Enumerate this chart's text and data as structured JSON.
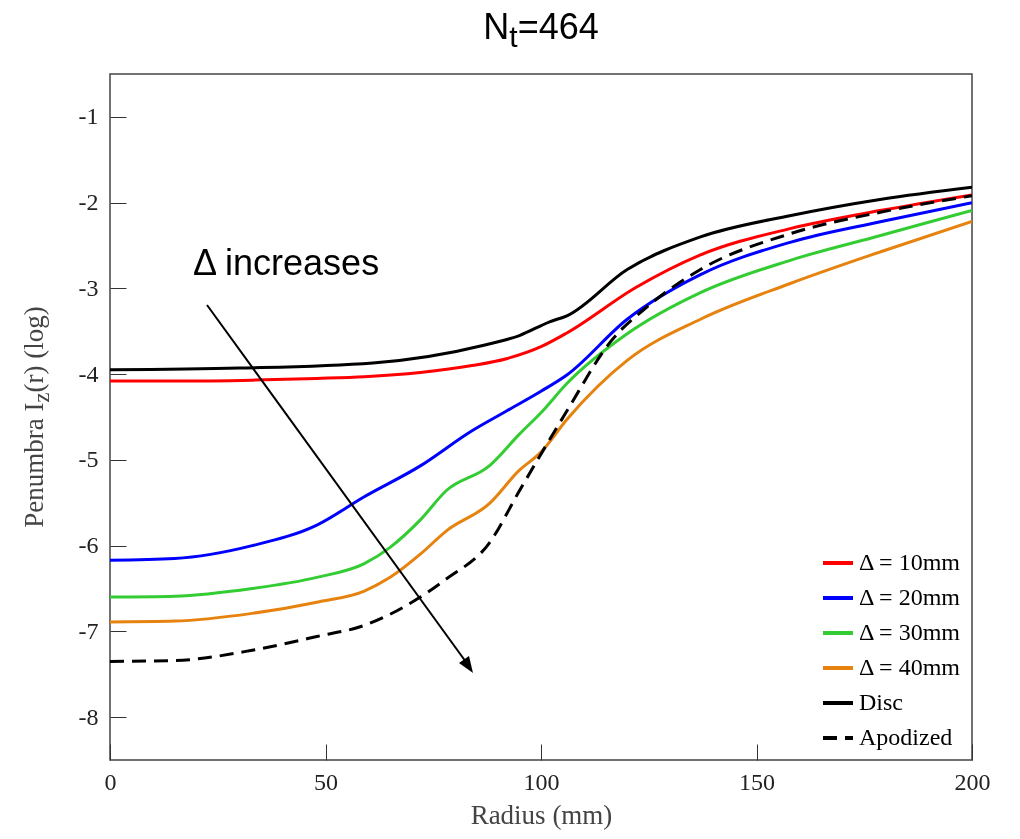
{
  "chart_data": {
    "type": "line",
    "title": "N$_{t}$=464",
    "xlabel": "Radius (mm)",
    "ylabel": "Penumbra I$_{z}$(r) (log)",
    "annotations": [
      "Δ increases"
    ],
    "xlim": [
      0,
      200
    ],
    "ylim": [
      -8.5,
      -0.5
    ],
    "xticks": [
      0,
      50,
      100,
      150,
      200
    ],
    "yticks": [
      -8,
      -7,
      -6,
      -5,
      -4,
      -3,
      -2,
      -1
    ],
    "grid": false,
    "legend": "bottom right",
    "series": [
      {
        "name": "Δ = 10mm",
        "color": "#ff0000",
        "line_style": "solid",
        "x": [
          0,
          15,
          33,
          48,
          59,
          72,
          84,
          92,
          100,
          106,
          122,
          137,
          158,
          179,
          200
        ],
        "values": [
          -4.08,
          -4.08,
          -4.07,
          -4.05,
          -4.03,
          -3.98,
          -3.9,
          -3.82,
          -3.68,
          -3.52,
          -2.99,
          -2.61,
          -2.3,
          -2.09,
          -1.91
        ]
      },
      {
        "name": "Δ = 20mm",
        "color": "#0000ff",
        "line_style": "solid",
        "x": [
          0,
          15,
          33,
          48,
          59,
          72,
          84,
          92,
          100,
          106,
          120,
          137,
          158,
          179,
          200
        ],
        "values": [
          -6.17,
          -6.15,
          -6.0,
          -5.76,
          -5.43,
          -5.07,
          -4.66,
          -4.43,
          -4.2,
          -4.01,
          -3.36,
          -2.84,
          -2.46,
          -2.22,
          -2.0
        ]
      },
      {
        "name": "Δ = 30mm",
        "color": "#33cc33",
        "line_style": "solid",
        "x": [
          0,
          15,
          33,
          48,
          59,
          65,
          72,
          78,
          88,
          95,
          100,
          106,
          120,
          137,
          158,
          179,
          200
        ],
        "values": [
          -6.6,
          -6.59,
          -6.5,
          -6.37,
          -6.21,
          -6.02,
          -5.7,
          -5.36,
          -5.07,
          -4.7,
          -4.45,
          -4.11,
          -3.53,
          -3.05,
          -2.67,
          -2.38,
          -2.09
        ]
      },
      {
        "name": "Δ = 40mm",
        "color": "#e6820e",
        "line_style": "solid",
        "x": [
          0,
          15,
          33,
          48,
          59,
          65,
          72,
          78,
          88,
          95,
          100,
          106,
          120,
          137,
          158,
          179,
          200
        ],
        "values": [
          -6.89,
          -6.88,
          -6.79,
          -6.66,
          -6.53,
          -6.37,
          -6.1,
          -5.83,
          -5.51,
          -5.12,
          -4.91,
          -4.53,
          -3.84,
          -3.36,
          -2.94,
          -2.57,
          -2.22
        ]
      },
      {
        "name": "Disc",
        "color": "#000000",
        "line_style": "solid",
        "x": [
          0,
          30,
          61,
          87,
          95,
          102,
          106,
          120,
          137,
          158,
          179,
          200
        ],
        "values": [
          -3.95,
          -3.93,
          -3.87,
          -3.66,
          -3.55,
          -3.39,
          -3.32,
          -2.78,
          -2.4,
          -2.15,
          -1.96,
          -1.82
        ]
      },
      {
        "name": "Apodized",
        "color": "#000000",
        "line_style": "dashed",
        "x": [
          0,
          15,
          33,
          48,
          59,
          72,
          78,
          88,
          95,
          106,
          116,
          125,
          137,
          158,
          179,
          200
        ],
        "values": [
          -7.35,
          -7.34,
          -7.22,
          -7.06,
          -6.93,
          -6.6,
          -6.39,
          -5.97,
          -5.36,
          -4.43,
          -3.63,
          -3.2,
          -2.78,
          -2.36,
          -2.11,
          -1.92
        ]
      }
    ]
  }
}
